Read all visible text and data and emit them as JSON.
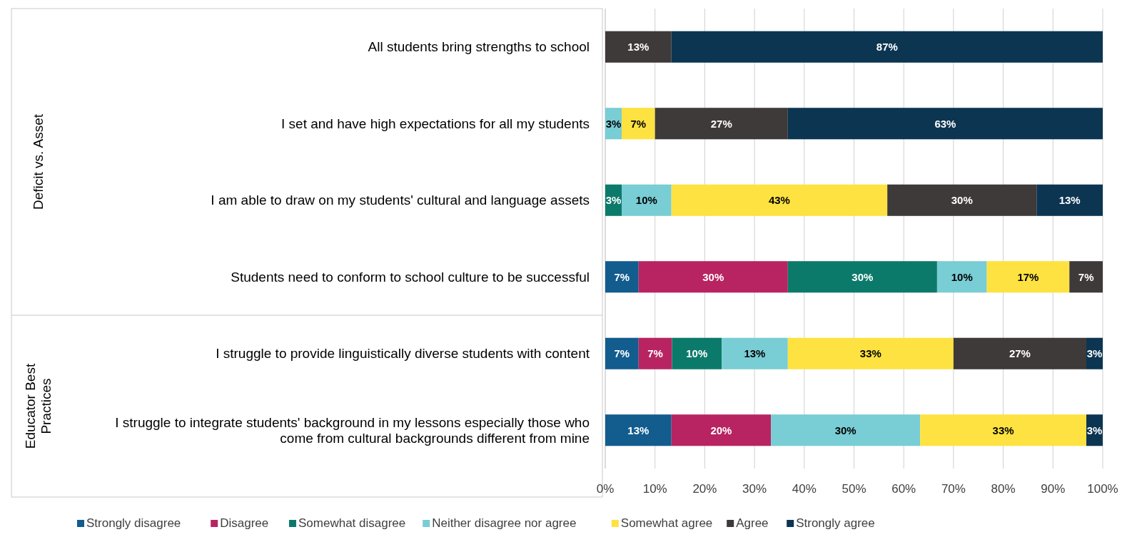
{
  "chart_data": {
    "type": "bar",
    "orientation": "horizontal",
    "stacked": true,
    "categories": [
      "All students bring strengths to school",
      "I set and have high expectations for all my students",
      "I am able to draw on my students' cultural and language assets",
      "Students need to conform to school culture to be successful",
      "I struggle to provide linguistically diverse students with content",
      "I struggle to integrate students' background in my lessons especially those who come from cultural backgrounds different from mine"
    ],
    "series": [
      {
        "name": "Strongly disagree",
        "color": "#125c8e",
        "values": [
          null,
          null,
          null,
          6.7,
          6.7,
          13.3
        ],
        "value_labels": [
          null,
          null,
          null,
          "7%",
          "7%",
          "13%"
        ]
      },
      {
        "name": "Disagree",
        "color": "#b82461",
        "values": [
          null,
          null,
          null,
          30,
          6.7,
          20
        ],
        "value_labels": [
          null,
          null,
          null,
          "30%",
          "7%",
          "20%"
        ]
      },
      {
        "name": "Somewhat disagree",
        "color": "#0c7a6a",
        "values": [
          null,
          null,
          3.3,
          30,
          10,
          null
        ],
        "value_labels": [
          null,
          null,
          "3%",
          "30%",
          "10%",
          null
        ]
      },
      {
        "name": "Neither disagree nor agree",
        "color": "#79cdd5",
        "values": [
          null,
          3.3,
          10,
          10,
          13.3,
          30
        ],
        "value_labels": [
          null,
          "3%",
          "10%",
          "10%",
          "13%",
          "30%"
        ]
      },
      {
        "name": "Somewhat agree",
        "color": "#fde241",
        "values": [
          null,
          6.7,
          43.4,
          16.6,
          33.3,
          33.4
        ],
        "value_labels": [
          null,
          "7%",
          "43%",
          "17%",
          "33%",
          "33%"
        ]
      },
      {
        "name": "Agree",
        "color": "#3e3a39",
        "values": [
          13.3,
          26.7,
          30,
          6.7,
          26.7,
          null
        ],
        "value_labels": [
          "13%",
          "27%",
          "30%",
          "7%",
          "27%",
          null
        ]
      },
      {
        "name": "Strongly agree",
        "color": "#0c3552",
        "values": [
          86.7,
          63.3,
          13.3,
          null,
          3.3,
          3.3
        ],
        "value_labels": [
          "87%",
          "63%",
          "13%",
          null,
          "3%",
          "3%"
        ]
      }
    ],
    "xlim": [
      0,
      100
    ],
    "xticks": [
      {
        "value": 0,
        "label": "0%"
      },
      {
        "value": 10,
        "label": "10%"
      },
      {
        "value": 20,
        "label": "20%"
      },
      {
        "value": 30,
        "label": "30%"
      },
      {
        "value": 40,
        "label": "40%"
      },
      {
        "value": 50,
        "label": "50%"
      },
      {
        "value": 60,
        "label": "60%"
      },
      {
        "value": 70,
        "label": "70%"
      },
      {
        "value": 80,
        "label": "80%"
      },
      {
        "value": 90,
        "label": "90%"
      },
      {
        "value": 100,
        "label": "100%"
      }
    ],
    "grid": "x",
    "legend": "bottom",
    "annotations": [
      "Deficit vs. Asset",
      "Educator Best Practices"
    ]
  }
}
